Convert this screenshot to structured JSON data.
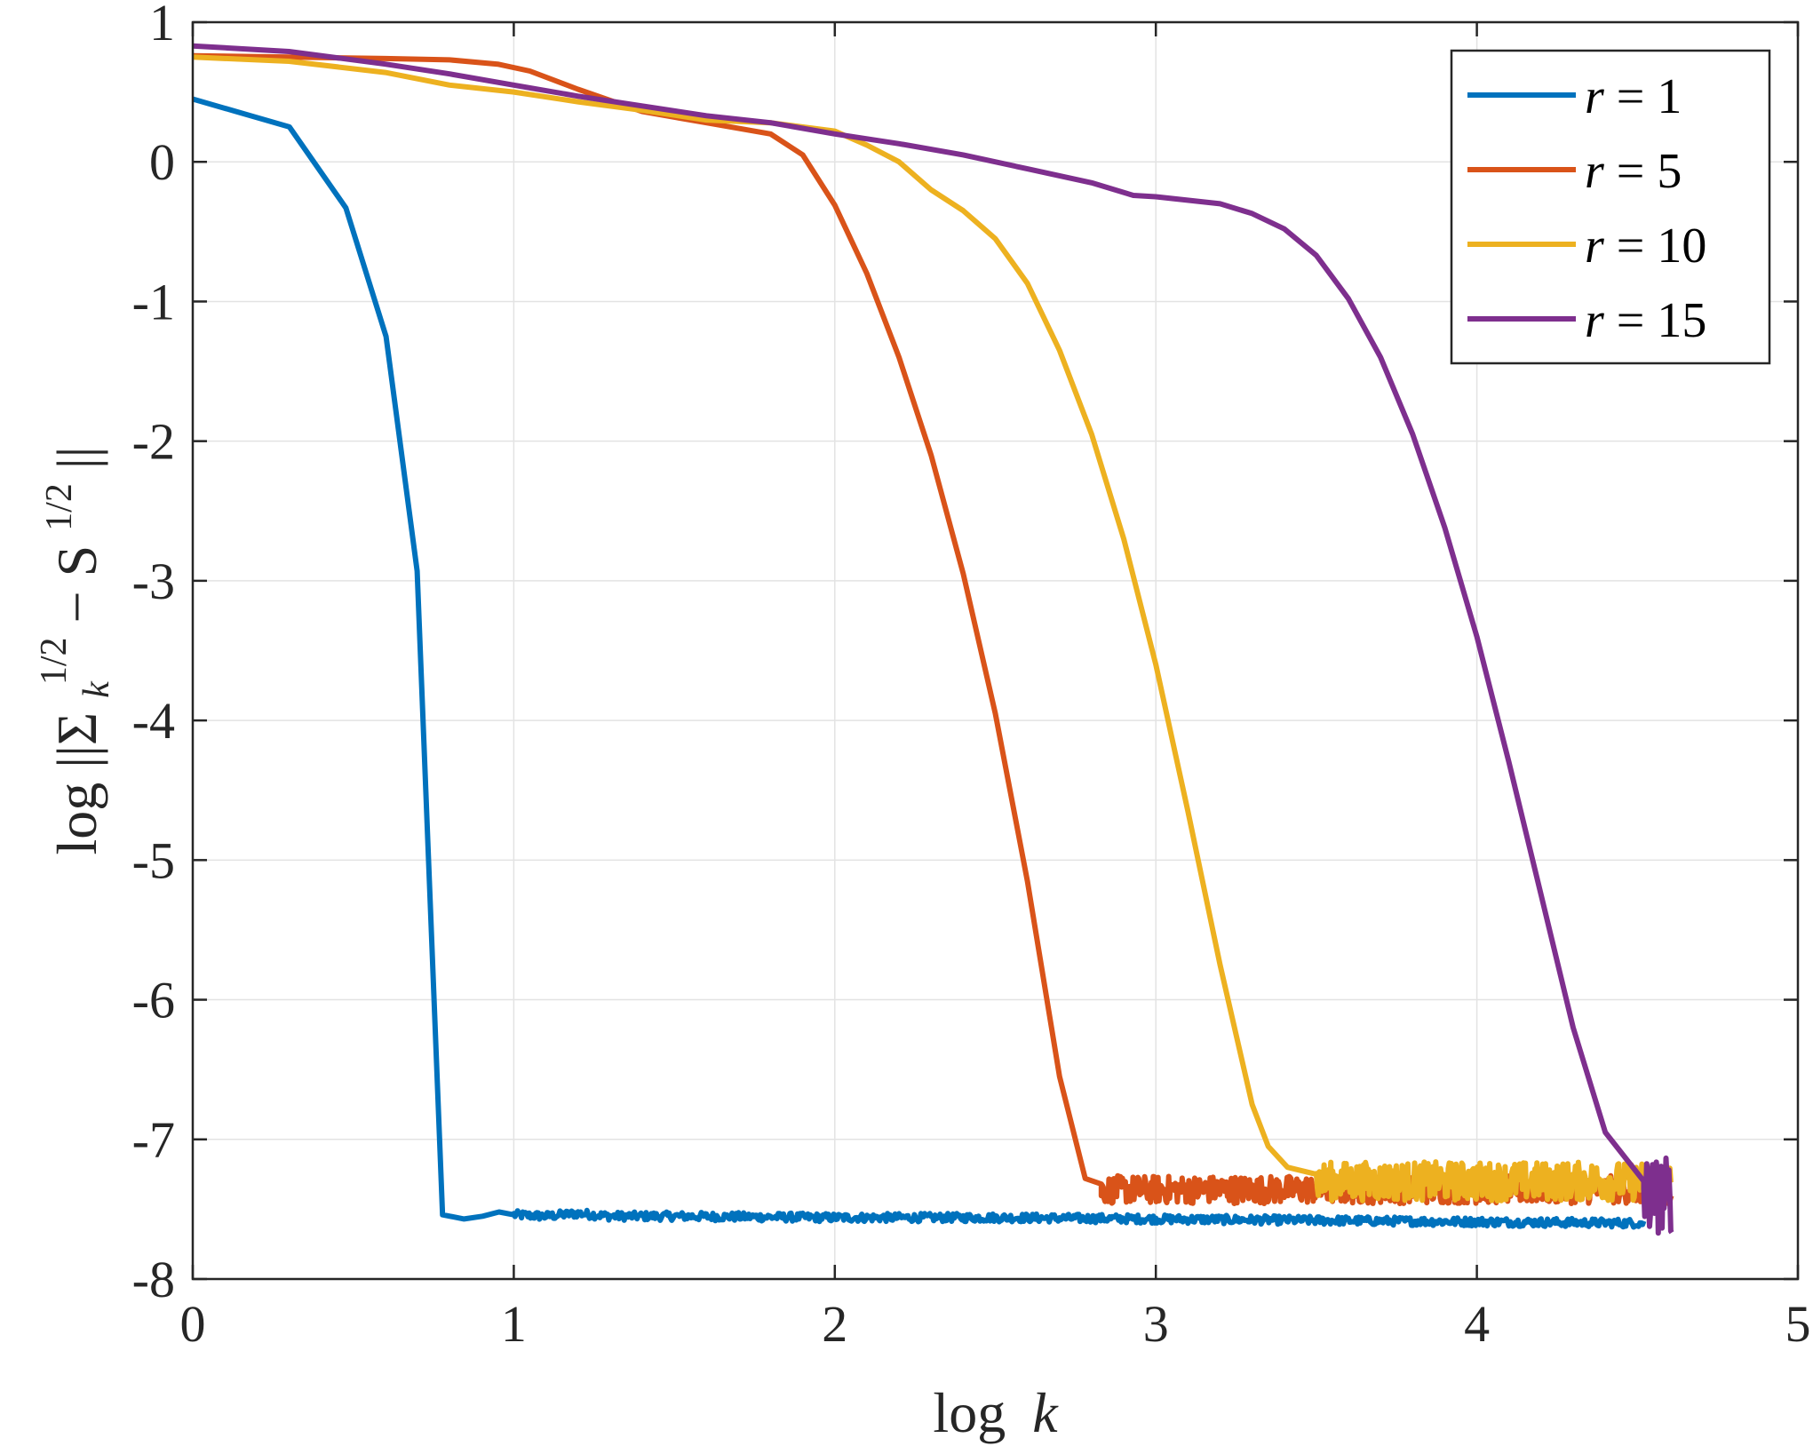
{
  "chart_data": {
    "type": "line",
    "title": "",
    "xlabel": "log k",
    "ylabel": "log ||Σ_k^{1/2} − S^{1/2}||",
    "xlim": [
      0,
      5
    ],
    "ylim": [
      -8,
      1
    ],
    "xticks": [
      "0",
      "1",
      "2",
      "3",
      "4",
      "5"
    ],
    "yticks": [
      "1",
      "0",
      "-1",
      "-2",
      "-3",
      "-4",
      "-5",
      "-6",
      "-7",
      "-8"
    ],
    "grid": true,
    "legend_position": "top-right",
    "series": [
      {
        "name": "r = 1",
        "color": "#0072BD",
        "points": [
          [
            0,
            0.45
          ],
          [
            0.301,
            0.25
          ],
          [
            0.477,
            -0.33
          ],
          [
            0.602,
            -1.25
          ],
          [
            0.699,
            -2.93
          ],
          [
            0.778,
            -7.54
          ],
          [
            0.845,
            -7.57
          ],
          [
            0.903,
            -7.55
          ],
          [
            0.954,
            -7.52
          ],
          [
            1.0,
            -7.54
          ],
          [
            1.1,
            -7.55
          ],
          [
            1.2,
            -7.53
          ],
          [
            1.3,
            -7.55
          ],
          [
            1.5,
            -7.55
          ],
          [
            2.0,
            -7.56
          ],
          [
            2.5,
            -7.56
          ],
          [
            3.0,
            -7.57
          ],
          [
            3.5,
            -7.58
          ],
          [
            4.0,
            -7.59
          ],
          [
            4.52,
            -7.6
          ]
        ],
        "noise_from": 1.0,
        "noise_amplitude": 0.03
      },
      {
        "name": "r = 5",
        "color": "#D95319",
        "points": [
          [
            0,
            0.76
          ],
          [
            0.3,
            0.75
          ],
          [
            0.6,
            0.74
          ],
          [
            0.8,
            0.73
          ],
          [
            0.95,
            0.7
          ],
          [
            1.05,
            0.65
          ],
          [
            1.2,
            0.52
          ],
          [
            1.4,
            0.36
          ],
          [
            1.6,
            0.28
          ],
          [
            1.8,
            0.2
          ],
          [
            1.9,
            0.05
          ],
          [
            2.0,
            -0.31
          ],
          [
            2.1,
            -0.8
          ],
          [
            2.2,
            -1.4
          ],
          [
            2.3,
            -2.1
          ],
          [
            2.4,
            -2.95
          ],
          [
            2.5,
            -3.95
          ],
          [
            2.6,
            -5.15
          ],
          [
            2.7,
            -6.55
          ],
          [
            2.78,
            -7.28
          ],
          [
            2.83,
            -7.32
          ]
        ],
        "noise_from": 2.83,
        "noise_to": 4.61,
        "noise_center": -7.36,
        "noise_amplitude": 0.1
      },
      {
        "name": "r = 10",
        "color": "#EDB120",
        "points": [
          [
            0,
            0.75
          ],
          [
            0.3,
            0.72
          ],
          [
            0.6,
            0.64
          ],
          [
            0.8,
            0.55
          ],
          [
            1.0,
            0.5
          ],
          [
            1.2,
            0.43
          ],
          [
            1.4,
            0.37
          ],
          [
            1.6,
            0.3
          ],
          [
            1.8,
            0.28
          ],
          [
            2.0,
            0.22
          ],
          [
            2.1,
            0.12
          ],
          [
            2.2,
            0.0
          ],
          [
            2.3,
            -0.2
          ],
          [
            2.4,
            -0.35
          ],
          [
            2.5,
            -0.55
          ],
          [
            2.6,
            -0.87
          ],
          [
            2.7,
            -1.35
          ],
          [
            2.8,
            -1.95
          ],
          [
            2.9,
            -2.7
          ],
          [
            3.0,
            -3.6
          ],
          [
            3.1,
            -4.65
          ],
          [
            3.2,
            -5.75
          ],
          [
            3.3,
            -6.75
          ],
          [
            3.35,
            -7.05
          ],
          [
            3.41,
            -7.2
          ],
          [
            3.5,
            -7.25
          ]
        ],
        "noise_from": 3.5,
        "noise_to": 4.61,
        "noise_center": -7.3,
        "noise_amplitude": 0.14
      },
      {
        "name": "r = 15",
        "color": "#7E2F8E",
        "points": [
          [
            0,
            0.83
          ],
          [
            0.3,
            0.79
          ],
          [
            0.6,
            0.7
          ],
          [
            0.8,
            0.63
          ],
          [
            1.0,
            0.55
          ],
          [
            1.2,
            0.47
          ],
          [
            1.4,
            0.4
          ],
          [
            1.6,
            0.33
          ],
          [
            1.8,
            0.28
          ],
          [
            2.0,
            0.2
          ],
          [
            2.2,
            0.13
          ],
          [
            2.4,
            0.05
          ],
          [
            2.6,
            -0.05
          ],
          [
            2.8,
            -0.15
          ],
          [
            2.93,
            -0.24
          ],
          [
            3.0,
            -0.25
          ],
          [
            3.2,
            -0.3
          ],
          [
            3.3,
            -0.37
          ],
          [
            3.4,
            -0.48
          ],
          [
            3.5,
            -0.67
          ],
          [
            3.6,
            -0.98
          ],
          [
            3.7,
            -1.4
          ],
          [
            3.8,
            -1.95
          ],
          [
            3.9,
            -2.62
          ],
          [
            4.0,
            -3.4
          ],
          [
            4.1,
            -4.3
          ],
          [
            4.2,
            -5.25
          ],
          [
            4.3,
            -6.2
          ],
          [
            4.4,
            -6.95
          ],
          [
            4.52,
            -7.3
          ]
        ],
        "noise_from": 4.52,
        "noise_to": 4.61,
        "noise_center": -7.4,
        "noise_amplitude": 0.28
      }
    ]
  },
  "legend": {
    "items": [
      {
        "prefix": "r",
        "rest": " = 1"
      },
      {
        "prefix": "r",
        "rest": " = 5"
      },
      {
        "prefix": "r",
        "rest": " = 10"
      },
      {
        "prefix": "r",
        "rest": " = 15"
      }
    ]
  },
  "labels": {
    "x_prefix": "log",
    "x_var": "k",
    "y_prefix": "log ||Σ",
    "y_sub": "k",
    "y_sup1": "1/2",
    "y_mid": " − S",
    "y_sup2": "1/2",
    "y_end": "||"
  }
}
